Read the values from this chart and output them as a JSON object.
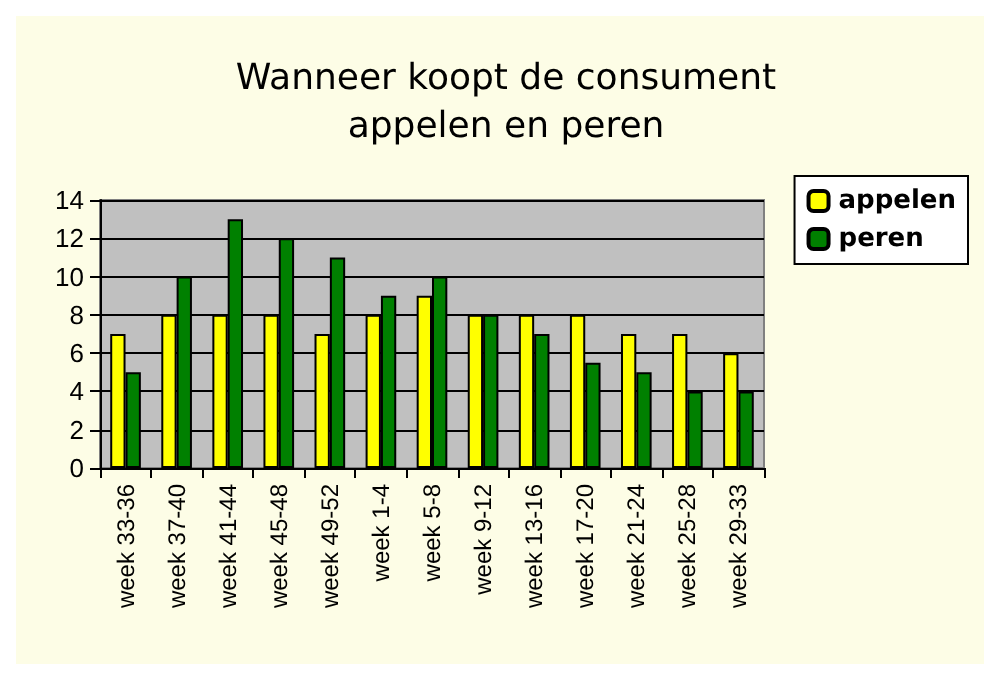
{
  "chart_data": {
    "type": "bar",
    "title": "Wanneer koopt de consument\nappelen en peren",
    "categories": [
      "week 33-36",
      "week 37-40",
      "week 41-44",
      "week 45-48",
      "week 49-52",
      "week 1-4",
      "week 5-8",
      "week 9-12",
      "week 13-16",
      "week 17-20",
      "week 21-24",
      "week 25-28",
      "week 29-33"
    ],
    "series": [
      {
        "name": "appelen",
        "color": "#ffff00",
        "values": [
          7,
          8,
          8,
          8,
          7,
          8,
          9,
          8,
          8,
          8,
          7,
          7,
          6
        ]
      },
      {
        "name": "peren",
        "color": "#008000",
        "values": [
          5,
          10,
          13,
          12,
          11,
          9,
          10,
          8,
          7,
          5.5,
          5,
          4,
          4
        ]
      }
    ],
    "ylim": [
      0,
      14
    ],
    "yticks": [
      0,
      2,
      4,
      6,
      8,
      10,
      12,
      14
    ],
    "grid": "y",
    "legend": "right"
  }
}
